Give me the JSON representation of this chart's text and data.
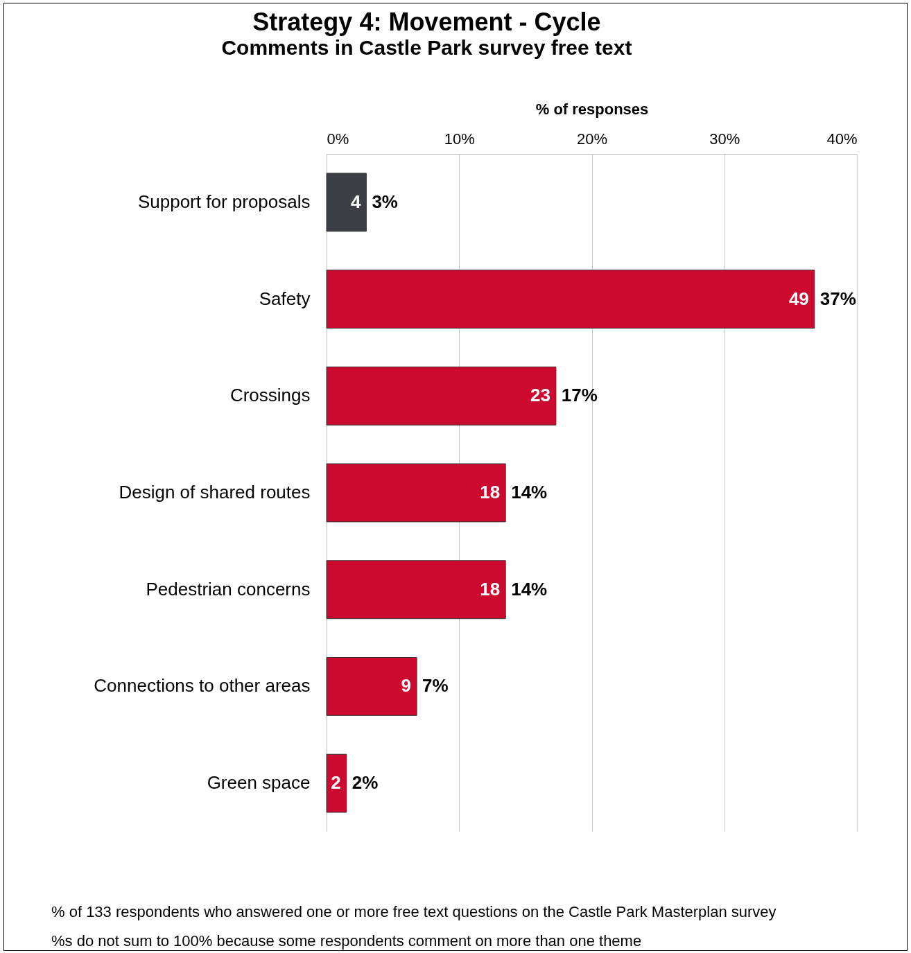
{
  "chart_data": {
    "type": "bar",
    "orientation": "horizontal",
    "title": "Strategy 4: Movement - Cycle",
    "subtitle": "Comments in Castle Park survey free text",
    "xlabel": "% of responses",
    "categories": [
      "Support for proposals",
      "Safety",
      "Crossings",
      "Design of shared routes",
      "Pedestrian concerns",
      "Connections to other areas",
      "Green space"
    ],
    "values": [
      3.0,
      36.8,
      17.3,
      13.5,
      13.5,
      6.8,
      1.5
    ],
    "colors": [
      "#3c4046",
      "#cc0a2f",
      "#cc0a2f",
      "#cc0a2f",
      "#cc0a2f",
      "#cc0a2f",
      "#cc0a2f"
    ],
    "value_labels": [
      "3%",
      "37%",
      "17%",
      "14%",
      "14%",
      "7%",
      "2%"
    ],
    "xlim": [
      0,
      40
    ],
    "xticks": [
      {
        "value": 0,
        "label": "0%"
      },
      {
        "value": 10,
        "label": "10%"
      },
      {
        "value": 20,
        "label": "20%"
      },
      {
        "value": 30,
        "label": "30%"
      },
      {
        "value": 40,
        "label": "40%"
      }
    ],
    "grid": "x",
    "legend": false,
    "annotations": [
      {
        "text": "4",
        "x": 3.0,
        "y": "Support for proposals"
      },
      {
        "text": "49",
        "x": 36.8,
        "y": "Safety"
      },
      {
        "text": "23",
        "x": 17.3,
        "y": "Crossings"
      },
      {
        "text": "18",
        "x": 13.5,
        "y": "Design of shared routes"
      },
      {
        "text": "18",
        "x": 13.5,
        "y": "Pedestrian concerns"
      },
      {
        "text": "9",
        "x": 6.8,
        "y": "Connections to other areas"
      },
      {
        "text": "2",
        "x": 1.5,
        "y": "Green space"
      },
      "% of 133 respondents who answered one or more free text questions on the Castle Park Masterplan survey",
      "%s do not sum to 100% because some respondents comment on more than one theme"
    ]
  }
}
